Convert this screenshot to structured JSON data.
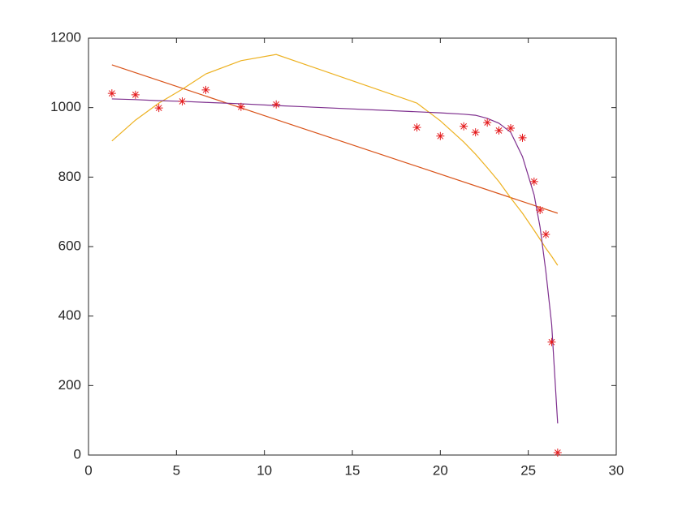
{
  "chart_data": {
    "type": "scatter",
    "xlim": [
      0,
      30
    ],
    "xticks": [
      0,
      5,
      10,
      15,
      20,
      25,
      30
    ],
    "ylim": [
      0,
      1200
    ],
    "yticks": [
      0,
      200,
      400,
      600,
      800,
      1000,
      1200
    ],
    "grid": false,
    "series": [
      {
        "mode": "markers",
        "color": "#e41a1c",
        "x": [
          1.33,
          2.67,
          4,
          5.33,
          6.67,
          8.67,
          10.67,
          18.67,
          20,
          21.33,
          22,
          22.67,
          23.33,
          24,
          24.67,
          25.33,
          25.67,
          26,
          26.33,
          26.67
        ],
        "values": [
          1041,
          1037,
          999,
          1018,
          1051,
          1002,
          1009,
          943,
          918,
          946,
          929,
          957,
          934,
          941,
          913,
          787,
          705,
          635,
          325,
          7
        ]
      },
      {
        "mode": "lines",
        "color": "#d95319",
        "x": [
          1.33,
          26.67
        ],
        "values": [
          1123,
          696
        ]
      },
      {
        "mode": "lines",
        "color": "#edb120",
        "x": [
          1.33,
          2.67,
          4,
          5.33,
          6.67,
          8.67,
          10.67,
          18.67,
          20,
          21.33,
          22,
          22.67,
          23.33,
          24,
          24.67,
          25.33,
          25.67,
          26,
          26.33,
          26.67
        ],
        "values": [
          904,
          964,
          1013,
          1053,
          1097,
          1135,
          1153,
          1013,
          962,
          901,
          866,
          827,
          787,
          740,
          696,
          647,
          621,
          595,
          572,
          546
        ]
      },
      {
        "mode": "lines",
        "color": "#7e2f8e",
        "x": [
          1.33,
          2.67,
          4,
          5.33,
          6.67,
          8.67,
          10.67,
          18.67,
          20,
          21.33,
          22,
          22.67,
          23.33,
          24,
          24.67,
          25.33,
          25.67,
          26,
          26.33,
          26.67
        ],
        "values": [
          1025,
          1023,
          1020,
          1018,
          1015,
          1011,
          1006,
          988,
          985,
          981,
          978,
          969,
          955,
          929,
          859,
          749,
          656,
          528,
          376,
          91
        ]
      }
    ]
  }
}
